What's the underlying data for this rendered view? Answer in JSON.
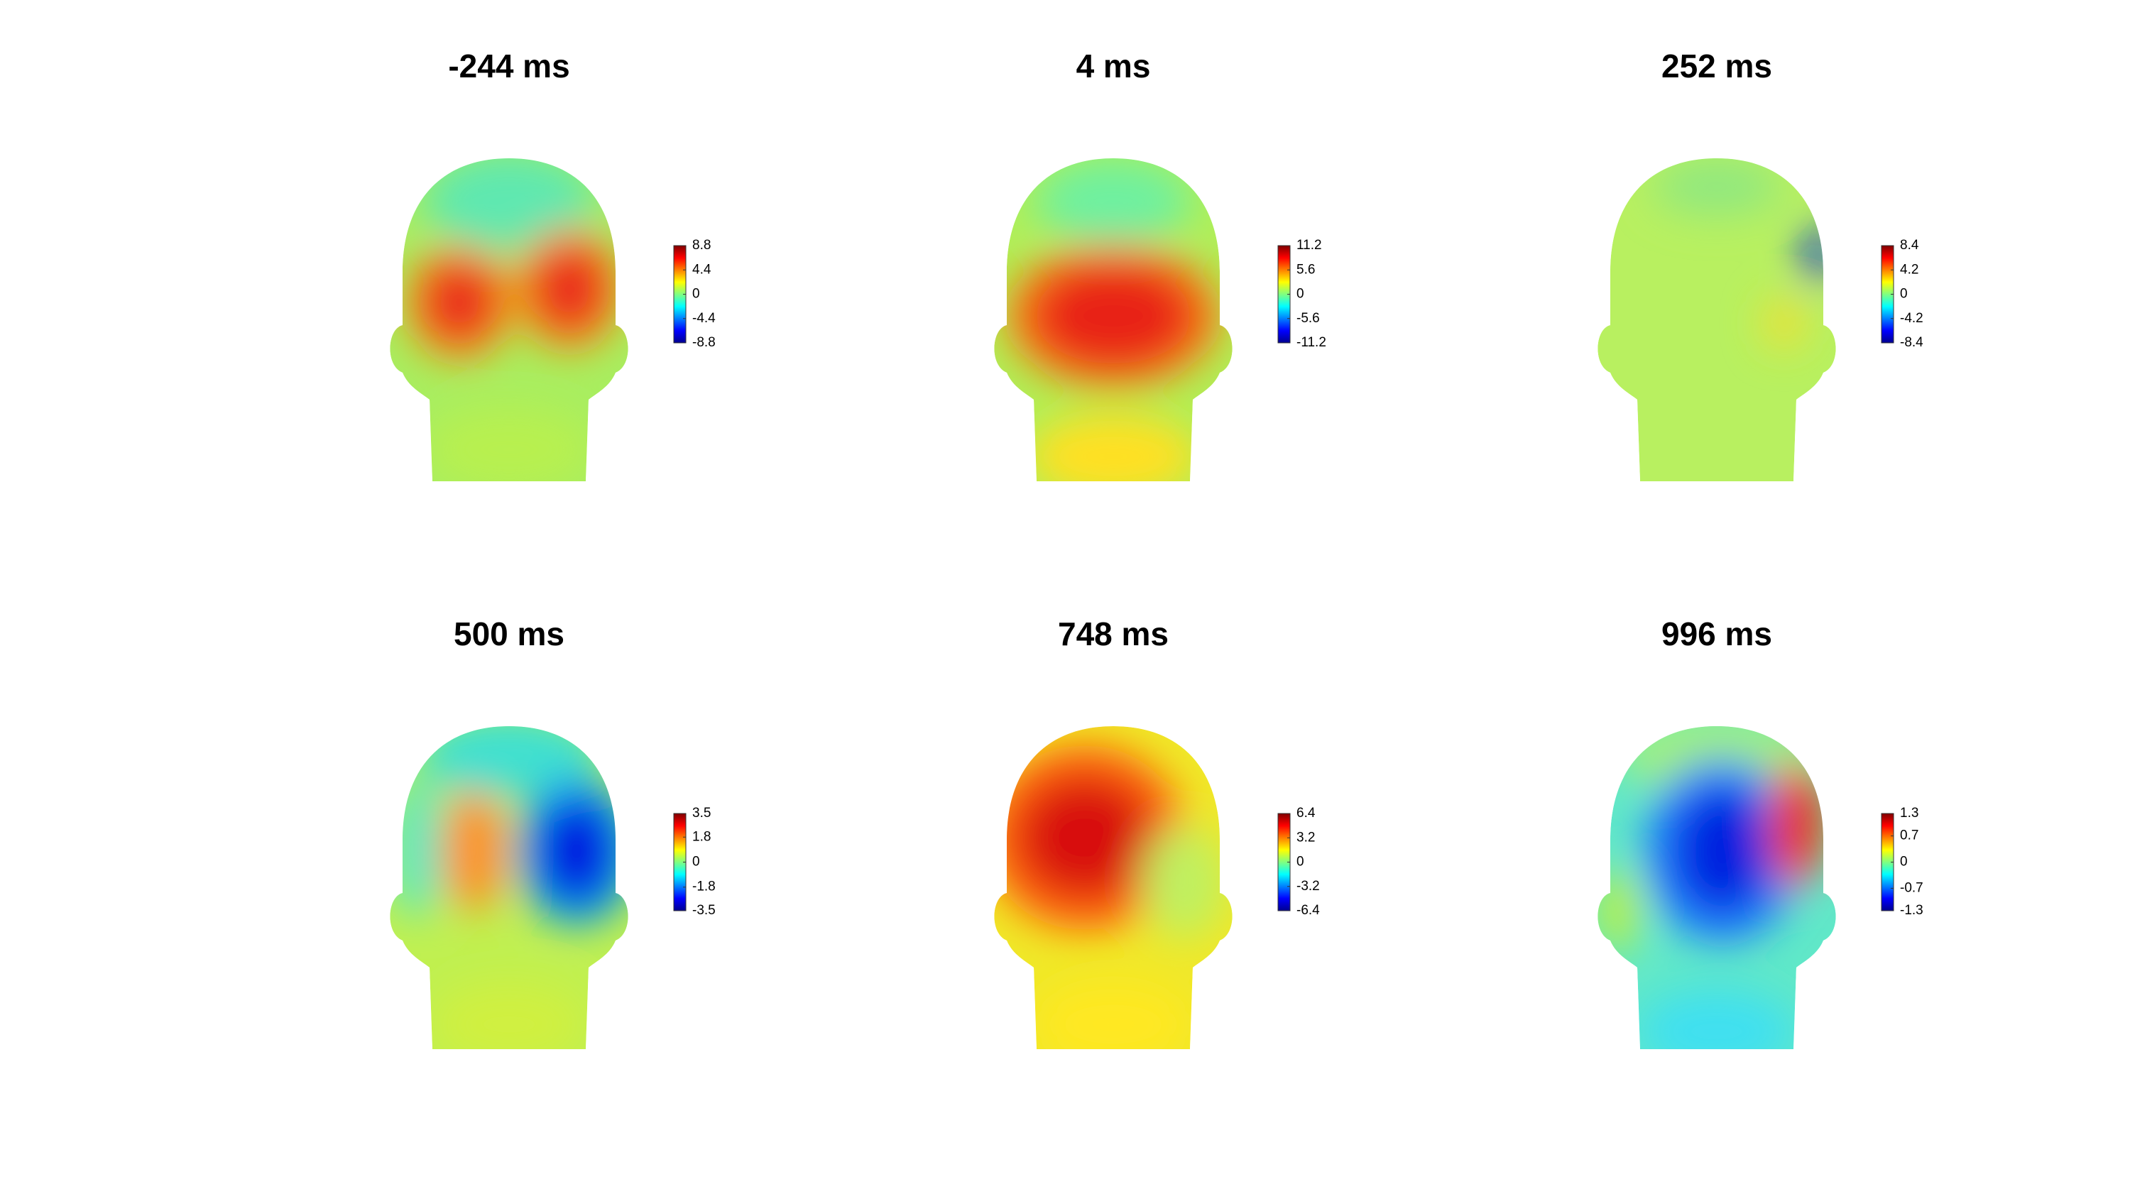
{
  "panels": [
    {
      "title": "-244 ms",
      "clim": [
        -8.8,
        8.8
      ],
      "ticks": [
        8.8,
        4.4,
        0,
        -4.4,
        -8.8
      ]
    },
    {
      "title": "4 ms",
      "clim": [
        -11.2,
        11.2
      ],
      "ticks": [
        11.2,
        5.6,
        0,
        -5.6,
        -11.2
      ]
    },
    {
      "title": "252 ms",
      "clim": [
        -8.4,
        8.4
      ],
      "ticks": [
        8.4,
        4.2,
        0,
        -4.2,
        -8.4
      ]
    },
    {
      "title": "500 ms",
      "clim": [
        -3.5,
        3.5
      ],
      "ticks": [
        3.5,
        1.8,
        0,
        -1.8,
        -3.5
      ]
    },
    {
      "title": "748 ms",
      "clim": [
        -6.4,
        6.4
      ],
      "ticks": [
        6.4,
        3.2,
        0,
        -3.2,
        -6.4
      ]
    },
    {
      "title": "996 ms",
      "clim": [
        -1.3,
        1.3
      ],
      "ticks": [
        1.3,
        0.7,
        0,
        -0.7,
        -1.3
      ]
    }
  ]
}
